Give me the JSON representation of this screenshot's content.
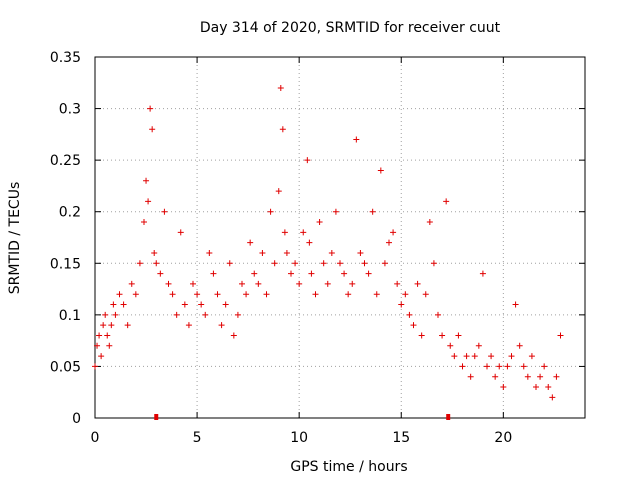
{
  "chart_data": {
    "type": "scatter",
    "title": "Day 314 of 2020, SRMTID for receiver cuut",
    "xlabel": "GPS time / hours",
    "ylabel": "SRMTID / TECUs",
    "xlim": [
      0,
      24
    ],
    "ylim": [
      0,
      0.35
    ],
    "xticks": [
      0,
      5,
      10,
      15,
      20
    ],
    "xtick_labels": [
      "0",
      "5",
      "10",
      "15",
      "20"
    ],
    "yticks": [
      0,
      0.05,
      0.1,
      0.15,
      0.2,
      0.25,
      0.3,
      0.35
    ],
    "ytick_labels": [
      "0",
      "0.05",
      "0.1",
      "0.15",
      "0.2",
      "0.25",
      "0.3",
      "0.35"
    ],
    "grid": true,
    "marker": "+",
    "color": "#e00000",
    "gap_markers_x": [
      3.0,
      17.3
    ],
    "series": [
      {
        "name": "SRMTID",
        "x": [
          0.0,
          0.1,
          0.2,
          0.3,
          0.4,
          0.5,
          0.6,
          0.7,
          0.8,
          0.9,
          1.0,
          1.2,
          1.4,
          1.6,
          1.8,
          2.0,
          2.2,
          2.4,
          2.5,
          2.6,
          2.7,
          2.8,
          2.9,
          3.0,
          3.2,
          3.4,
          3.6,
          3.8,
          4.0,
          4.2,
          4.4,
          4.6,
          4.8,
          5.0,
          5.2,
          5.4,
          5.6,
          5.8,
          6.0,
          6.2,
          6.4,
          6.6,
          6.8,
          7.0,
          7.2,
          7.4,
          7.6,
          7.8,
          8.0,
          8.2,
          8.4,
          8.6,
          8.8,
          9.0,
          9.1,
          9.2,
          9.3,
          9.4,
          9.6,
          9.8,
          10.0,
          10.2,
          10.4,
          10.5,
          10.6,
          10.8,
          11.0,
          11.2,
          11.4,
          11.6,
          11.8,
          12.0,
          12.2,
          12.4,
          12.6,
          12.8,
          13.0,
          13.2,
          13.4,
          13.6,
          13.8,
          14.0,
          14.2,
          14.4,
          14.6,
          14.8,
          15.0,
          15.2,
          15.4,
          15.6,
          15.8,
          16.0,
          16.2,
          16.4,
          16.6,
          16.8,
          17.0,
          17.2,
          17.4,
          17.6,
          17.8,
          18.0,
          18.2,
          18.4,
          18.6,
          18.8,
          19.0,
          19.2,
          19.4,
          19.6,
          19.8,
          20.0,
          20.2,
          20.4,
          20.6,
          20.8,
          21.0,
          21.2,
          21.4,
          21.6,
          21.8,
          22.0,
          22.2,
          22.4,
          22.6,
          22.8
        ],
        "y": [
          0.05,
          0.07,
          0.08,
          0.06,
          0.09,
          0.1,
          0.08,
          0.07,
          0.09,
          0.11,
          0.1,
          0.12,
          0.11,
          0.09,
          0.13,
          0.12,
          0.15,
          0.19,
          0.23,
          0.21,
          0.3,
          0.28,
          0.16,
          0.15,
          0.14,
          0.2,
          0.13,
          0.12,
          0.1,
          0.18,
          0.11,
          0.09,
          0.13,
          0.12,
          0.11,
          0.1,
          0.16,
          0.14,
          0.12,
          0.09,
          0.11,
          0.15,
          0.08,
          0.1,
          0.13,
          0.12,
          0.17,
          0.14,
          0.13,
          0.16,
          0.12,
          0.2,
          0.15,
          0.22,
          0.32,
          0.28,
          0.18,
          0.16,
          0.14,
          0.15,
          0.13,
          0.18,
          0.25,
          0.17,
          0.14,
          0.12,
          0.19,
          0.15,
          0.13,
          0.16,
          0.2,
          0.15,
          0.14,
          0.12,
          0.13,
          0.27,
          0.16,
          0.15,
          0.14,
          0.2,
          0.12,
          0.24,
          0.15,
          0.17,
          0.18,
          0.13,
          0.11,
          0.12,
          0.1,
          0.09,
          0.13,
          0.08,
          0.12,
          0.19,
          0.15,
          0.1,
          0.08,
          0.21,
          0.07,
          0.06,
          0.08,
          0.05,
          0.06,
          0.04,
          0.06,
          0.07,
          0.14,
          0.05,
          0.06,
          0.04,
          0.05,
          0.03,
          0.05,
          0.06,
          0.11,
          0.07,
          0.05,
          0.04,
          0.06,
          0.03,
          0.04,
          0.05,
          0.03,
          0.02,
          0.04,
          0.08
        ]
      }
    ]
  }
}
